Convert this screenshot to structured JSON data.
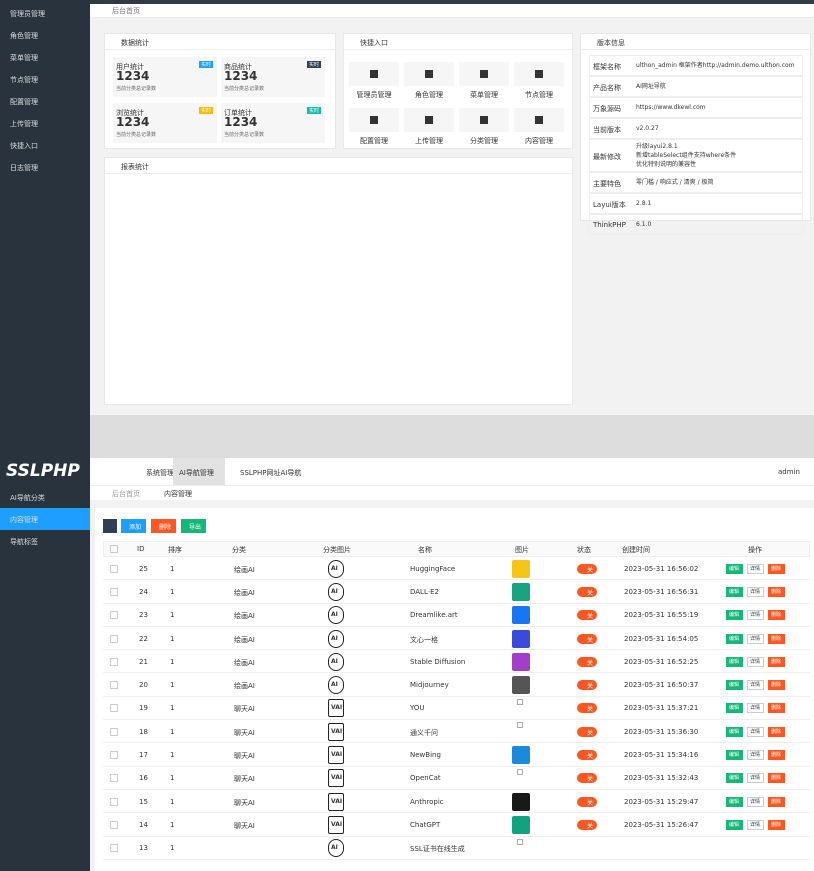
{
  "top": {
    "tab": "后台首页",
    "sidebar": [
      "管理员管理",
      "角色管理",
      "菜单管理",
      "节点管理",
      "配置管理",
      "上传管理",
      "快捷入口",
      "日志管理"
    ],
    "stats": {
      "title": "数据统计",
      "cards": [
        {
          "title": "用户统计",
          "badge": "实时",
          "badge_color": "#1e9fff",
          "value": 1234,
          "note": "当前分类总记录数"
        },
        {
          "title": "商品统计",
          "badge": "实时",
          "badge_color": "#2f4056",
          "value": 1234,
          "note": "当前分类总记录数"
        },
        {
          "title": "浏览统计",
          "badge": "实时",
          "badge_color": "#ffb800",
          "value": 1234,
          "note": "当前分类总记录数"
        },
        {
          "title": "订单统计",
          "badge": "实时",
          "badge_color": "#16baaa",
          "value": 1234,
          "note": "当前分类总记录数"
        }
      ]
    },
    "shortcuts": {
      "title": "快捷入口",
      "items": [
        "管理员管理",
        "角色管理",
        "菜单管理",
        "节点管理",
        "配置管理",
        "上传管理",
        "分类管理",
        "内容管理"
      ]
    },
    "version": {
      "title": "版本信息",
      "rows": [
        [
          "框架名称",
          "ulthon_admin 框架作者http://admin.demo.ulthon.com"
        ],
        [
          "产品名称",
          "AI网址导航"
        ],
        [
          "万象源码",
          "https://www.dkewl.com"
        ],
        [
          "当前版本",
          "v2.0.27"
        ],
        [
          "最新修改",
          "升级layui2.8.1\n新增tableSelect组件支持where条件\n优化特别说明的兼容性"
        ],
        [
          "主要特色",
          "零门槛 / 响应式 / 清爽 / 极简"
        ],
        [
          "Layui版本",
          "2.8.1"
        ],
        [
          "ThinkPHP",
          "6.1.0"
        ]
      ]
    },
    "report": {
      "title": "报表统计"
    }
  },
  "bottom": {
    "logo": "SSLPHP",
    "nav": [
      "系统管理",
      "AI导航管理",
      "SSLPHP网址AI导航"
    ],
    "active_nav": 1,
    "user": "admin",
    "sidebar": [
      "AI导航分类",
      "内容管理",
      "导航标签"
    ],
    "active_side": 1,
    "tabs": [
      "后台首页",
      "内容管理"
    ],
    "buttons": [
      {
        "label": "添加",
        "color": "#1e9fff"
      },
      {
        "label": "删除",
        "color": "#ff5722"
      },
      {
        "label": "导出",
        "color": "#16b777"
      }
    ],
    "columns": [
      "ID",
      "排序",
      "分类",
      "分类图片",
      "名称",
      "图片",
      "状态",
      "创建时间",
      "操作"
    ],
    "actions": [
      {
        "label": "编辑",
        "color": "#16b777"
      },
      {
        "label": "详情",
        "color": "#ffffff"
      },
      {
        "label": "删除",
        "color": "#ff5722"
      }
    ],
    "rows": [
      {
        "id": 25,
        "sort": 1,
        "category": "绘画AI",
        "cat_icon": "AI",
        "name": "HuggingFace",
        "image": "#f5c518",
        "status": "关",
        "created": "2023-05-31 16:56:02"
      },
      {
        "id": 24,
        "sort": 1,
        "category": "绘画AI",
        "cat_icon": "AI",
        "name": "DALL·E2",
        "image": "#19a37f",
        "status": "关",
        "created": "2023-05-31 16:56:31"
      },
      {
        "id": 23,
        "sort": 1,
        "category": "绘画AI",
        "cat_icon": "AI",
        "name": "Dreamlike.art",
        "image": "#1976f2",
        "status": "关",
        "created": "2023-05-31 16:55:19"
      },
      {
        "id": 22,
        "sort": 1,
        "category": "绘画AI",
        "cat_icon": "AI",
        "name": "文心一格",
        "image": "#3a4bd8",
        "status": "关",
        "created": "2023-05-31 16:54:05"
      },
      {
        "id": 21,
        "sort": 1,
        "category": "绘画AI",
        "cat_icon": "AI",
        "name": "Stable Diffusion",
        "image": "#a23ec7",
        "status": "关",
        "created": "2023-05-31 16:52:25"
      },
      {
        "id": 20,
        "sort": 1,
        "category": "绘画AI",
        "cat_icon": "AI",
        "name": "Midjourney",
        "image": "#555555",
        "status": "关",
        "created": "2023-05-31 16:50:37"
      },
      {
        "id": 19,
        "sort": 1,
        "category": "聊天AI",
        "cat_icon": "VAI",
        "name": "YOU",
        "image": null,
        "status": "关",
        "created": "2023-05-31 15:37:21"
      },
      {
        "id": 18,
        "sort": 1,
        "category": "聊天AI",
        "cat_icon": "VAI",
        "name": "通义千问",
        "image": null,
        "status": "关",
        "created": "2023-05-31 15:36:30"
      },
      {
        "id": 17,
        "sort": 1,
        "category": "聊天AI",
        "cat_icon": "VAI",
        "name": "NewBing",
        "image": "#1b8ad8",
        "status": "关",
        "created": "2023-05-31 15:34:16"
      },
      {
        "id": 16,
        "sort": 1,
        "category": "聊天AI",
        "cat_icon": "VAI",
        "name": "OpenCat",
        "image": null,
        "status": "关",
        "created": "2023-05-31 15:32:43"
      },
      {
        "id": 15,
        "sort": 1,
        "category": "聊天AI",
        "cat_icon": "VAI",
        "name": "Anthropic",
        "image": "#191919",
        "status": "关",
        "created": "2023-05-31 15:29:47"
      },
      {
        "id": 14,
        "sort": 1,
        "category": "聊天AI",
        "cat_icon": "VAI",
        "name": "ChatGPT",
        "image": "#10a37f",
        "status": "关",
        "created": "2023-05-31 15:26:47"
      },
      {
        "id": 13,
        "sort": 1,
        "cat_icon": "AI",
        "name": "SSL证书在线生成",
        "image": null
      }
    ]
  }
}
